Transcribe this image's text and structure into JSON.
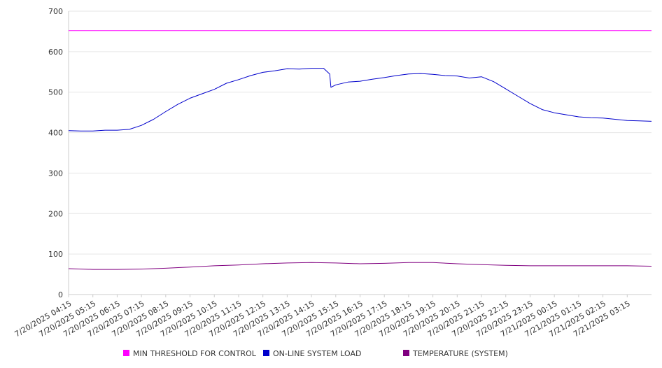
{
  "chart_data": {
    "type": "line",
    "title": "",
    "xlabel": "",
    "ylabel": "",
    "ylim": [
      0,
      700
    ],
    "y_ticks": [
      0,
      100,
      200,
      300,
      400,
      500,
      600,
      700
    ],
    "grid": true,
    "legend_position": "bottom",
    "x_tick_labels": [
      "7/20/2025 04:15",
      "7/20/2025 05:15",
      "7/20/2025 06:15",
      "7/20/2025 07:15",
      "7/20/2025 08:15",
      "7/20/2025 09:15",
      "7/20/2025 10:15",
      "7/20/2025 11:15",
      "7/20/2025 12:15",
      "7/20/2025 13:15",
      "7/20/2025 14:15",
      "7/20/2025 15:15",
      "7/20/2025 16:15",
      "7/20/2025 17:15",
      "7/20/2025 18:15",
      "7/20/2025 19:15",
      "7/20/2025 20:15",
      "7/20/2025 21:15",
      "7/20/2025 22:15",
      "7/20/2025 23:15",
      "7/21/2025 00:15",
      "7/21/2025 01:15",
      "7/21/2025 02:15",
      "7/21/2025 03:15"
    ],
    "x_range_hours": [
      0,
      24
    ],
    "series": [
      {
        "name": "MIN THRESHOLD FOR CONTROL",
        "color": "#ff00ff",
        "x": [
          0,
          24
        ],
        "values": [
          652,
          652
        ]
      },
      {
        "name": "ON-LINE SYSTEM LOAD",
        "color": "#0000cc",
        "x": [
          0,
          0.5,
          1,
          1.5,
          2,
          2.5,
          3,
          3.5,
          4,
          4.5,
          5,
          5.5,
          6,
          6.5,
          7,
          7.5,
          8,
          8.5,
          9,
          9.5,
          10,
          10.5,
          10.75,
          10.8,
          11,
          11.5,
          12,
          12.5,
          13,
          13.5,
          14,
          14.5,
          15,
          15.5,
          16,
          16.5,
          17,
          17.5,
          18,
          18.5,
          19,
          19.5,
          20,
          20.5,
          21,
          21.5,
          22,
          22.5,
          23,
          23.5,
          24
        ],
        "values": [
          405,
          404,
          404,
          406,
          406,
          408,
          418,
          433,
          452,
          470,
          485,
          496,
          507,
          522,
          531,
          541,
          549,
          553,
          558,
          557,
          559,
          559,
          545,
          512,
          518,
          525,
          527,
          532,
          536,
          541,
          545,
          546,
          544,
          541,
          540,
          535,
          538,
          526,
          508,
          490,
          472,
          457,
          449,
          444,
          439,
          437,
          436,
          433,
          430,
          429,
          428
        ]
      },
      {
        "name": "TEMPERATURE (SYSTEM)",
        "color": "#800080",
        "x": [
          0,
          1,
          2,
          3,
          4,
          5,
          6,
          7,
          8,
          9,
          10,
          11,
          12,
          13,
          14,
          15,
          16,
          17,
          18,
          19,
          20,
          21,
          22,
          23,
          24
        ],
        "values": [
          64,
          62,
          62,
          63,
          65,
          68,
          71,
          73,
          76,
          78,
          79,
          78,
          76,
          77,
          79,
          79,
          76,
          74,
          72,
          71,
          71,
          71,
          71,
          71,
          70
        ]
      }
    ]
  }
}
